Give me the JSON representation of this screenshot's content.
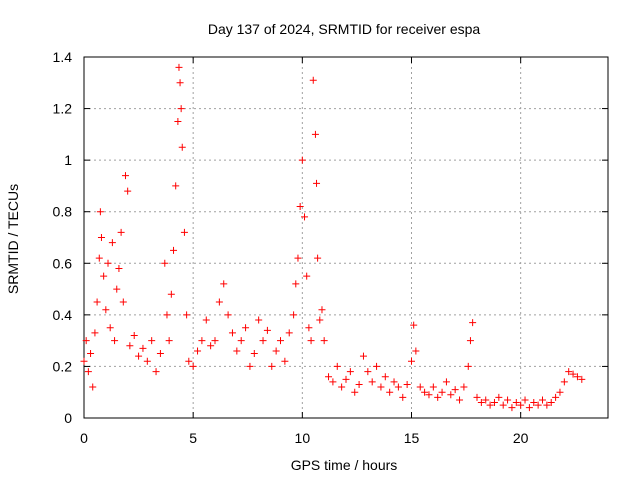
{
  "chart_data": {
    "type": "scatter",
    "title": "Day 137 of 2024, SRMTID for receiver espa",
    "xlabel": "GPS time / hours",
    "ylabel": "SRMTID / TECUs",
    "xlim": [
      0,
      24
    ],
    "ylim": [
      0,
      1.4
    ],
    "x_ticks": [
      0,
      5,
      10,
      15,
      20
    ],
    "x_tick_labels": [
      "0",
      "5",
      "10",
      "15",
      "20"
    ],
    "y_ticks": [
      0,
      0.2,
      0.4,
      0.6,
      0.8,
      1.0,
      1.2,
      1.4
    ],
    "y_tick_labels": [
      "0",
      "0.2",
      "0.4",
      "0.6",
      "0.8",
      "1",
      "1.2",
      "1.4"
    ],
    "grid": true,
    "marker": "+",
    "marker_color": "#ff0000",
    "series": [
      {
        "name": "SRMTID",
        "points": [
          [
            0.0,
            0.22
          ],
          [
            0.1,
            0.3
          ],
          [
            0.2,
            0.18
          ],
          [
            0.3,
            0.25
          ],
          [
            0.4,
            0.12
          ],
          [
            0.5,
            0.33
          ],
          [
            0.6,
            0.45
          ],
          [
            0.7,
            0.62
          ],
          [
            0.75,
            0.8
          ],
          [
            0.8,
            0.7
          ],
          [
            0.9,
            0.55
          ],
          [
            1.0,
            0.42
          ],
          [
            1.1,
            0.6
          ],
          [
            1.2,
            0.35
          ],
          [
            1.3,
            0.68
          ],
          [
            1.4,
            0.3
          ],
          [
            1.5,
            0.5
          ],
          [
            1.6,
            0.58
          ],
          [
            1.7,
            0.72
          ],
          [
            1.8,
            0.45
          ],
          [
            1.9,
            0.94
          ],
          [
            2.0,
            0.88
          ],
          [
            2.1,
            0.28
          ],
          [
            2.3,
            0.32
          ],
          [
            2.5,
            0.24
          ],
          [
            2.7,
            0.27
          ],
          [
            2.9,
            0.22
          ],
          [
            3.1,
            0.3
          ],
          [
            3.3,
            0.18
          ],
          [
            3.5,
            0.25
          ],
          [
            3.7,
            0.6
          ],
          [
            3.8,
            0.4
          ],
          [
            3.9,
            0.3
          ],
          [
            4.0,
            0.48
          ],
          [
            4.1,
            0.65
          ],
          [
            4.2,
            0.9
          ],
          [
            4.3,
            1.15
          ],
          [
            4.35,
            1.36
          ],
          [
            4.4,
            1.3
          ],
          [
            4.45,
            1.2
          ],
          [
            4.5,
            1.05
          ],
          [
            4.6,
            0.72
          ],
          [
            4.7,
            0.4
          ],
          [
            4.8,
            0.22
          ],
          [
            5.0,
            0.2
          ],
          [
            5.2,
            0.26
          ],
          [
            5.4,
            0.3
          ],
          [
            5.6,
            0.38
          ],
          [
            5.8,
            0.28
          ],
          [
            6.0,
            0.3
          ],
          [
            6.2,
            0.45
          ],
          [
            6.4,
            0.52
          ],
          [
            6.6,
            0.4
          ],
          [
            6.8,
            0.33
          ],
          [
            7.0,
            0.26
          ],
          [
            7.2,
            0.3
          ],
          [
            7.4,
            0.35
          ],
          [
            7.6,
            0.2
          ],
          [
            7.8,
            0.25
          ],
          [
            8.0,
            0.38
          ],
          [
            8.2,
            0.3
          ],
          [
            8.4,
            0.34
          ],
          [
            8.6,
            0.2
          ],
          [
            8.8,
            0.26
          ],
          [
            9.0,
            0.3
          ],
          [
            9.2,
            0.22
          ],
          [
            9.4,
            0.33
          ],
          [
            9.6,
            0.4
          ],
          [
            9.7,
            0.52
          ],
          [
            9.8,
            0.62
          ],
          [
            9.9,
            0.82
          ],
          [
            10.0,
            1.0
          ],
          [
            10.1,
            0.78
          ],
          [
            10.2,
            0.55
          ],
          [
            10.3,
            0.35
          ],
          [
            10.4,
            0.3
          ],
          [
            10.5,
            1.31
          ],
          [
            10.6,
            1.1
          ],
          [
            10.65,
            0.91
          ],
          [
            10.7,
            0.62
          ],
          [
            10.8,
            0.38
          ],
          [
            10.9,
            0.42
          ],
          [
            11.0,
            0.3
          ],
          [
            11.2,
            0.16
          ],
          [
            11.4,
            0.14
          ],
          [
            11.6,
            0.2
          ],
          [
            11.8,
            0.12
          ],
          [
            12.0,
            0.15
          ],
          [
            12.2,
            0.18
          ],
          [
            12.4,
            0.1
          ],
          [
            12.6,
            0.13
          ],
          [
            12.8,
            0.24
          ],
          [
            13.0,
            0.18
          ],
          [
            13.2,
            0.14
          ],
          [
            13.4,
            0.2
          ],
          [
            13.6,
            0.12
          ],
          [
            13.8,
            0.16
          ],
          [
            14.0,
            0.1
          ],
          [
            14.2,
            0.14
          ],
          [
            14.4,
            0.12
          ],
          [
            14.6,
            0.08
          ],
          [
            14.8,
            0.13
          ],
          [
            15.0,
            0.22
          ],
          [
            15.1,
            0.36
          ],
          [
            15.2,
            0.26
          ],
          [
            15.4,
            0.12
          ],
          [
            15.6,
            0.1
          ],
          [
            15.8,
            0.09
          ],
          [
            16.0,
            0.12
          ],
          [
            16.2,
            0.08
          ],
          [
            16.4,
            0.1
          ],
          [
            16.6,
            0.14
          ],
          [
            16.8,
            0.09
          ],
          [
            17.0,
            0.11
          ],
          [
            17.2,
            0.07
          ],
          [
            17.4,
            0.12
          ],
          [
            17.6,
            0.2
          ],
          [
            17.7,
            0.3
          ],
          [
            17.8,
            0.37
          ],
          [
            18.0,
            0.08
          ],
          [
            18.2,
            0.06
          ],
          [
            18.4,
            0.07
          ],
          [
            18.6,
            0.05
          ],
          [
            18.8,
            0.06
          ],
          [
            19.0,
            0.08
          ],
          [
            19.2,
            0.05
          ],
          [
            19.4,
            0.07
          ],
          [
            19.6,
            0.04
          ],
          [
            19.8,
            0.06
          ],
          [
            20.0,
            0.05
          ],
          [
            20.2,
            0.07
          ],
          [
            20.4,
            0.04
          ],
          [
            20.6,
            0.06
          ],
          [
            20.8,
            0.05
          ],
          [
            21.0,
            0.07
          ],
          [
            21.2,
            0.05
          ],
          [
            21.4,
            0.06
          ],
          [
            21.6,
            0.08
          ],
          [
            21.8,
            0.1
          ],
          [
            22.0,
            0.14
          ],
          [
            22.2,
            0.18
          ],
          [
            22.4,
            0.17
          ],
          [
            22.6,
            0.16
          ],
          [
            22.8,
            0.15
          ]
        ]
      }
    ]
  }
}
